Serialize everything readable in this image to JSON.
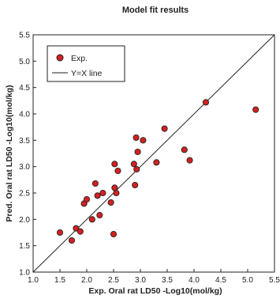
{
  "chart_data": {
    "type": "scatter",
    "title": "Model fit results",
    "xlabel": "Exp. Oral rat LD50 -Log10(mol/kg)",
    "ylabel": "Pred. Oral rat LD50 -Log10(mol/kg)",
    "xlim": [
      1.0,
      5.5
    ],
    "ylim": [
      1.0,
      5.5
    ],
    "xticks": [
      "1.0",
      "1.5",
      "2.0",
      "2.5",
      "3.0",
      "3.5",
      "4.0",
      "4.5",
      "5.0",
      "5.5"
    ],
    "yticks": [
      "1.0",
      "1.5",
      "2.0",
      "2.5",
      "3.0",
      "3.5",
      "4.0",
      "4.5",
      "5.0",
      "5.5"
    ],
    "grid": false,
    "legend_position": "top-left",
    "legend": [
      "Exp.",
      "Y=X line"
    ],
    "marker_color": "#d42020",
    "line_color": "#222222",
    "series": [
      {
        "name": "Exp.",
        "x": [
          1.5,
          1.72,
          1.8,
          1.88,
          1.95,
          2.0,
          2.1,
          2.16,
          2.2,
          2.24,
          2.3,
          2.45,
          2.5,
          2.52,
          2.52,
          2.55,
          2.58,
          2.88,
          2.9,
          2.92,
          2.93,
          2.95,
          3.05,
          3.3,
          3.45,
          3.82,
          3.92,
          4.22,
          5.15
        ],
        "y": [
          1.75,
          1.6,
          1.83,
          1.77,
          2.3,
          2.38,
          2.0,
          2.68,
          2.45,
          2.08,
          2.5,
          2.32,
          1.72,
          2.6,
          3.05,
          2.5,
          2.92,
          3.05,
          2.65,
          3.55,
          2.95,
          3.28,
          3.5,
          3.08,
          3.72,
          3.32,
          3.12,
          4.22,
          4.08
        ]
      },
      {
        "name": "Y=X line",
        "x": [
          1.0,
          5.5
        ],
        "y": [
          1.0,
          5.5
        ]
      }
    ]
  }
}
